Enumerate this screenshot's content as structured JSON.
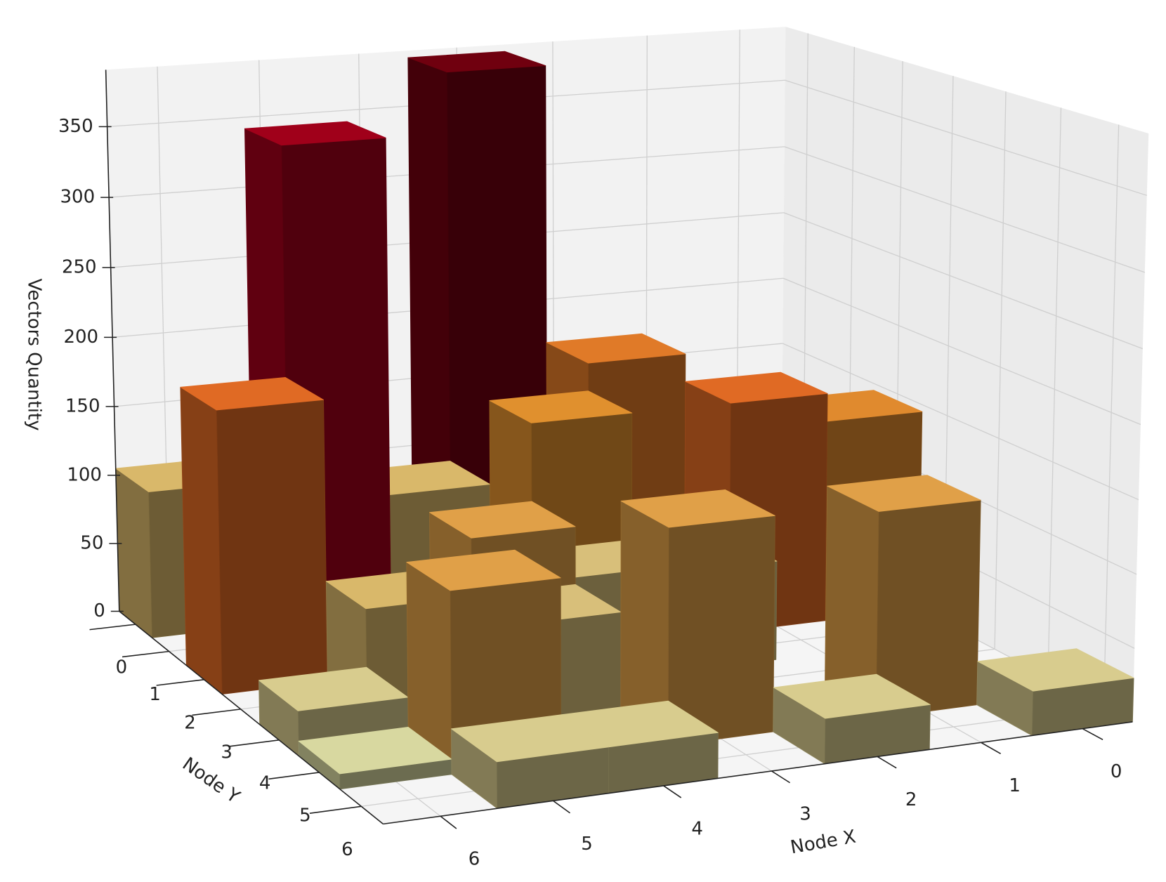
{
  "chart_data": {
    "type": "bar3d",
    "xlabel": "Node X",
    "ylabel": "Node Y",
    "zlabel": "Vectors Quantity",
    "xlim": [
      -0.5,
      6.5
    ],
    "ylim": [
      -0.5,
      6.5
    ],
    "zlim": [
      0,
      390
    ],
    "xticks": [
      0,
      1,
      2,
      3,
      4,
      5,
      6
    ],
    "yticks": [
      0,
      1,
      2,
      3,
      4,
      5,
      6
    ],
    "zticks": [
      0,
      50,
      100,
      150,
      200,
      250,
      300,
      350
    ],
    "grid": true,
    "x": [
      6,
      5,
      3,
      6,
      2,
      3,
      1,
      0,
      4,
      4,
      2,
      5,
      5,
      3,
      4,
      3,
      4,
      5,
      2,
      0,
      6,
      1,
      6
    ],
    "y": [
      0,
      1,
      0,
      2,
      1,
      2,
      2,
      2,
      3,
      1,
      3,
      3,
      5,
      5,
      4,
      3,
      6,
      6,
      6,
      6,
      5,
      5,
      4
    ],
    "values": [
      105,
      355,
      385,
      195,
      185,
      165,
      165,
      145,
      110,
      105,
      70,
      70,
      120,
      145,
      70,
      75,
      30,
      30,
      30,
      30,
      10,
      140,
      30
    ],
    "colors": [
      "#d9b86a",
      "#a0001a",
      "#70000f",
      "#e06a24",
      "#e07a28",
      "#e0902e",
      "#e06a24",
      "#e08a2e",
      "#e0a048",
      "#d9b86a",
      "#d8bf7a",
      "#d9b86a",
      "#e0a048",
      "#e0a048",
      "#d8bf7a",
      "#d8bf7a",
      "#d8cc8e",
      "#d8cc8e",
      "#d8cc8e",
      "#d8cc8e",
      "#d8d8a0",
      "#e0a048",
      "#d8cc8e"
    ]
  }
}
